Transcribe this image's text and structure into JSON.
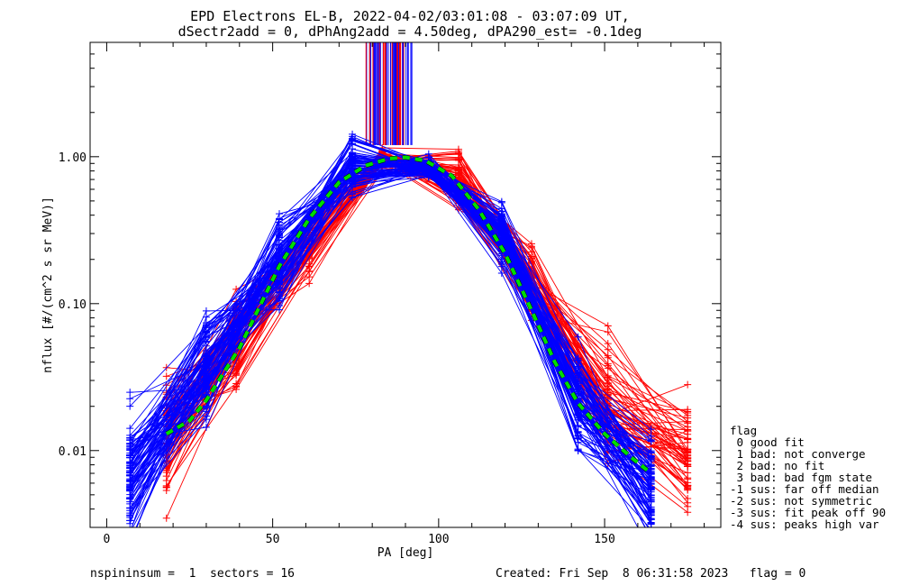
{
  "title_lines": [
    "EPD Electrons EL-B, 2022-04-02/03:01:08 - 03:07:09 UT,",
    "dSectr2add = 0, dPhAng2add = 4.50deg, dPA290_est=  -0.1deg"
  ],
  "footer": {
    "left": "nspininsum =  1  sectors = 16",
    "right": "Created: Fri Sep  8 06:31:58 2023   flag = 0"
  },
  "legend": {
    "title": "flag",
    "entries": [
      " 0 good fit",
      " 1 bad: not converge",
      " 2 bad: no fit",
      " 3 bad: bad fgm state",
      "-1 sus: far off median",
      "-2 sus: not symmetric",
      "-3 sus: fit peak off 90",
      "-4 sus: peaks high var"
    ]
  },
  "colors": {
    "series_a": "#ff0000",
    "series_b": "#0000ff",
    "fit": "#00dd00",
    "fit_shadow": "#000000"
  },
  "chart_data": {
    "type": "line",
    "xlabel": "PA [deg]",
    "ylabel": "nflux [#/(cm^2 s sr MeV)]",
    "xlim": [
      -5,
      185
    ],
    "ylim": [
      0.003,
      6.0
    ],
    "yscale": "log",
    "xticks": [
      0,
      50,
      100,
      150
    ],
    "xtick_labels": [
      "0",
      "50",
      "100",
      "150"
    ],
    "yticks": [
      0.01,
      0.1,
      1.0
    ],
    "ytick_labels": [
      "0.01",
      "0.10",
      "1.00"
    ],
    "pa_bins": [
      7,
      16,
      18,
      30,
      39,
      52,
      61,
      74,
      83,
      97,
      106,
      119,
      128,
      142,
      151,
      164,
      175
    ],
    "series": [
      {
        "color": "red",
        "n_traces": 60,
        "pa_red_layout": [
          18,
          39,
          61,
          83,
          106,
          128,
          151,
          175
        ],
        "median_profile": [
          0.013,
          0.05,
          0.25,
          0.95,
          0.7,
          0.15,
          0.02,
          0.009
        ]
      },
      {
        "color": "blue",
        "n_traces": 90,
        "pa_blue_layout": [
          7,
          30,
          52,
          74,
          97,
          119,
          142,
          164
        ],
        "median_profile": [
          0.007,
          0.035,
          0.2,
          0.82,
          0.85,
          0.3,
          0.025,
          0.006
        ]
      }
    ],
    "fit_curve": {
      "x": [
        18,
        25,
        30,
        40,
        52,
        61,
        70,
        78,
        85,
        90,
        96,
        104,
        112,
        120,
        128,
        135,
        142,
        150,
        158,
        164
      ],
      "y": [
        0.013,
        0.016,
        0.022,
        0.05,
        0.18,
        0.38,
        0.67,
        0.87,
        0.97,
        0.99,
        0.94,
        0.74,
        0.44,
        0.22,
        0.09,
        0.04,
        0.021,
        0.013,
        0.009,
        0.007
      ]
    },
    "spike_band": {
      "x_range": [
        78,
        92
      ],
      "y_range": [
        1.2,
        6.0
      ]
    }
  }
}
